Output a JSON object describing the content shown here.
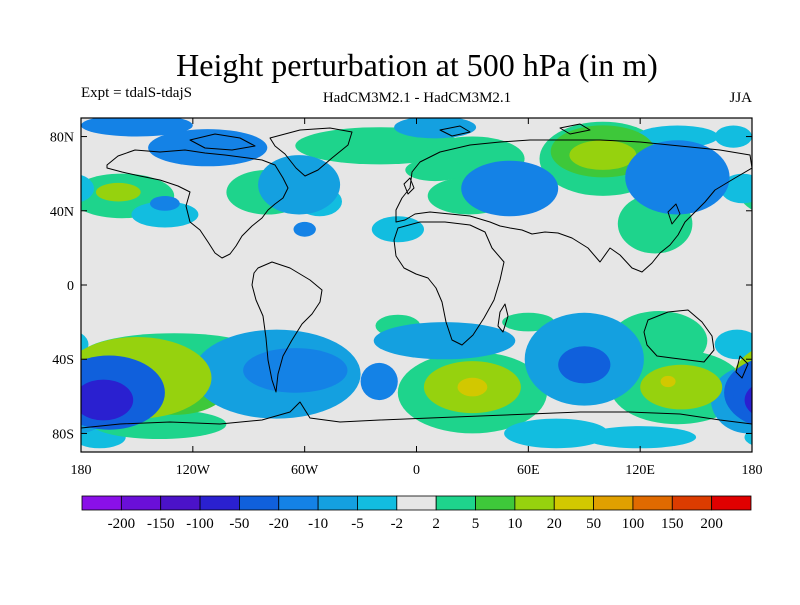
{
  "title": "Height perturbation at 500 hPa (in m)",
  "experiment": "Expt = tdalS-tdajS",
  "model": "HadCM3M2.1 - HadCM3M2.1",
  "season": "JJA",
  "chart_data": {
    "type": "heatmap",
    "projection": "cylindrical equidistant",
    "xlim": [
      -180,
      180
    ],
    "ylim": [
      -90,
      90
    ],
    "x_ticks": [
      "180",
      "120W",
      "60W",
      "0",
      "60E",
      "120E",
      "180"
    ],
    "y_ticks": [
      "80N",
      "40N",
      "0",
      "40S",
      "80S"
    ],
    "colorbar": {
      "labels": [
        "-200",
        "-150",
        "-100",
        "-50",
        "-20",
        "-10",
        "-5",
        "-2",
        "2",
        "5",
        "10",
        "20",
        "50",
        "100",
        "150",
        "200"
      ],
      "colors": [
        "#8a10e8",
        "#6a0fd8",
        "#4b12c8",
        "#2a20d0",
        "#1060dc",
        "#1482e6",
        "#14a0e0",
        "#12bde0",
        "#e6e6e6",
        "#1ed48c",
        "#3ec83a",
        "#96d20e",
        "#d2c800",
        "#e0a000",
        "#e06a00",
        "#dc3c00",
        "#e00000"
      ]
    },
    "features": [
      {
        "level": 5,
        "lon": -112,
        "lat": 74,
        "rx": 32,
        "ry": 10
      },
      {
        "level": 6,
        "lon": -102,
        "lat": 76,
        "rx": 18,
        "ry": 6
      },
      {
        "level": 5,
        "lon": -150,
        "lat": 86,
        "rx": 30,
        "ry": 6
      },
      {
        "level": 6,
        "lon": 10,
        "lat": 85,
        "rx": 22,
        "ry": 6
      },
      {
        "level": 9,
        "lon": -20,
        "lat": 75,
        "rx": 45,
        "ry": 10
      },
      {
        "level": 9,
        "lon": 30,
        "lat": 68,
        "rx": 28,
        "ry": 12
      },
      {
        "level": 6,
        "lon": -63,
        "lat": 54,
        "rx": 22,
        "ry": 16
      },
      {
        "level": 7,
        "lon": -52,
        "lat": 45,
        "rx": 12,
        "ry": 8
      },
      {
        "level": 9,
        "lon": -158,
        "lat": 48,
        "rx": 28,
        "ry": 12
      },
      {
        "level": 11,
        "lon": -160,
        "lat": 50,
        "rx": 12,
        "ry": 5
      },
      {
        "level": 5,
        "lon": -135,
        "lat": 44,
        "rx": 8,
        "ry": 4
      },
      {
        "level": 9,
        "lon": -80,
        "lat": 50,
        "rx": 22,
        "ry": 12
      },
      {
        "level": 7,
        "lon": -135,
        "lat": 38,
        "rx": 18,
        "ry": 7
      },
      {
        "level": 5,
        "lon": -60,
        "lat": 30,
        "rx": 6,
        "ry": 4
      },
      {
        "level": 5,
        "lon": 50,
        "lat": 52,
        "rx": 26,
        "ry": 15
      },
      {
        "level": 6,
        "lon": 50,
        "lat": 50,
        "rx": 18,
        "ry": 10
      },
      {
        "level": 9,
        "lon": 28,
        "lat": 48,
        "rx": 22,
        "ry": 10
      },
      {
        "level": 9,
        "lon": 10,
        "lat": 62,
        "rx": 16,
        "ry": 6
      },
      {
        "level": 9,
        "lon": 100,
        "lat": 68,
        "rx": 34,
        "ry": 20
      },
      {
        "level": 10,
        "lon": 100,
        "lat": 72,
        "rx": 28,
        "ry": 14
      },
      {
        "level": 11,
        "lon": 100,
        "lat": 70,
        "rx": 18,
        "ry": 8
      },
      {
        "level": 7,
        "lon": 140,
        "lat": 80,
        "rx": 22,
        "ry": 6
      },
      {
        "level": 5,
        "lon": 140,
        "lat": 58,
        "rx": 28,
        "ry": 20
      },
      {
        "level": 6,
        "lon": 140,
        "lat": 56,
        "rx": 18,
        "ry": 12
      },
      {
        "level": 7,
        "lon": 170,
        "lat": 80,
        "rx": 10,
        "ry": 6
      },
      {
        "level": 9,
        "lon": 128,
        "lat": 33,
        "rx": 20,
        "ry": 16
      },
      {
        "level": 7,
        "lon": 175,
        "lat": 52,
        "rx": 12,
        "ry": 8
      },
      {
        "level": 7,
        "lon": -10,
        "lat": 30,
        "rx": 14,
        "ry": 7
      },
      {
        "level": 9,
        "lon": -130,
        "lat": -38,
        "rx": 50,
        "ry": 12
      },
      {
        "level": 11,
        "lon": -150,
        "lat": -50,
        "rx": 40,
        "ry": 22
      },
      {
        "level": 10,
        "lon": -130,
        "lat": -56,
        "rx": 28,
        "ry": 14
      },
      {
        "level": 4,
        "lon": -165,
        "lat": -58,
        "rx": 30,
        "ry": 20
      },
      {
        "level": 3,
        "lon": -168,
        "lat": -62,
        "rx": 16,
        "ry": 11
      },
      {
        "level": 7,
        "lon": -170,
        "lat": -82,
        "rx": 14,
        "ry": 6
      },
      {
        "level": 9,
        "lon": -138,
        "lat": -75,
        "rx": 36,
        "ry": 8
      },
      {
        "level": 6,
        "lon": -75,
        "lat": -48,
        "rx": 45,
        "ry": 24
      },
      {
        "level": 5,
        "lon": -65,
        "lat": -46,
        "rx": 28,
        "ry": 12
      },
      {
        "level": 5,
        "lon": -20,
        "lat": -52,
        "rx": 10,
        "ry": 10
      },
      {
        "level": 9,
        "lon": -10,
        "lat": -22,
        "rx": 12,
        "ry": 6
      },
      {
        "level": 9,
        "lon": 30,
        "lat": -58,
        "rx": 40,
        "ry": 22
      },
      {
        "level": 11,
        "lon": 30,
        "lat": -55,
        "rx": 26,
        "ry": 14
      },
      {
        "level": 12,
        "lon": 30,
        "lat": -55,
        "rx": 8,
        "ry": 5
      },
      {
        "level": 6,
        "lon": 15,
        "lat": -30,
        "rx": 38,
        "ry": 10
      },
      {
        "level": 6,
        "lon": 90,
        "lat": -40,
        "rx": 32,
        "ry": 25
      },
      {
        "level": 4,
        "lon": 90,
        "lat": -43,
        "rx": 14,
        "ry": 10
      },
      {
        "level": 7,
        "lon": 75,
        "lat": -80,
        "rx": 28,
        "ry": 8
      },
      {
        "level": 9,
        "lon": 130,
        "lat": -30,
        "rx": 26,
        "ry": 16
      },
      {
        "level": 9,
        "lon": 140,
        "lat": -55,
        "rx": 36,
        "ry": 20
      },
      {
        "level": 11,
        "lon": 142,
        "lat": -55,
        "rx": 22,
        "ry": 12
      },
      {
        "level": 12,
        "lon": 135,
        "lat": -52,
        "rx": 4,
        "ry": 3
      },
      {
        "level": 6,
        "lon": 178,
        "lat": -62,
        "rx": 20,
        "ry": 18
      },
      {
        "level": 4,
        "lon": 180,
        "lat": -60,
        "rx": 10,
        "ry": 10
      },
      {
        "level": 7,
        "lon": 172,
        "lat": -32,
        "rx": 12,
        "ry": 8
      },
      {
        "level": 7,
        "lon": 120,
        "lat": -82,
        "rx": 30,
        "ry": 6
      },
      {
        "level": 9,
        "lon": 60,
        "lat": -20,
        "rx": 14,
        "ry": 5
      }
    ]
  }
}
